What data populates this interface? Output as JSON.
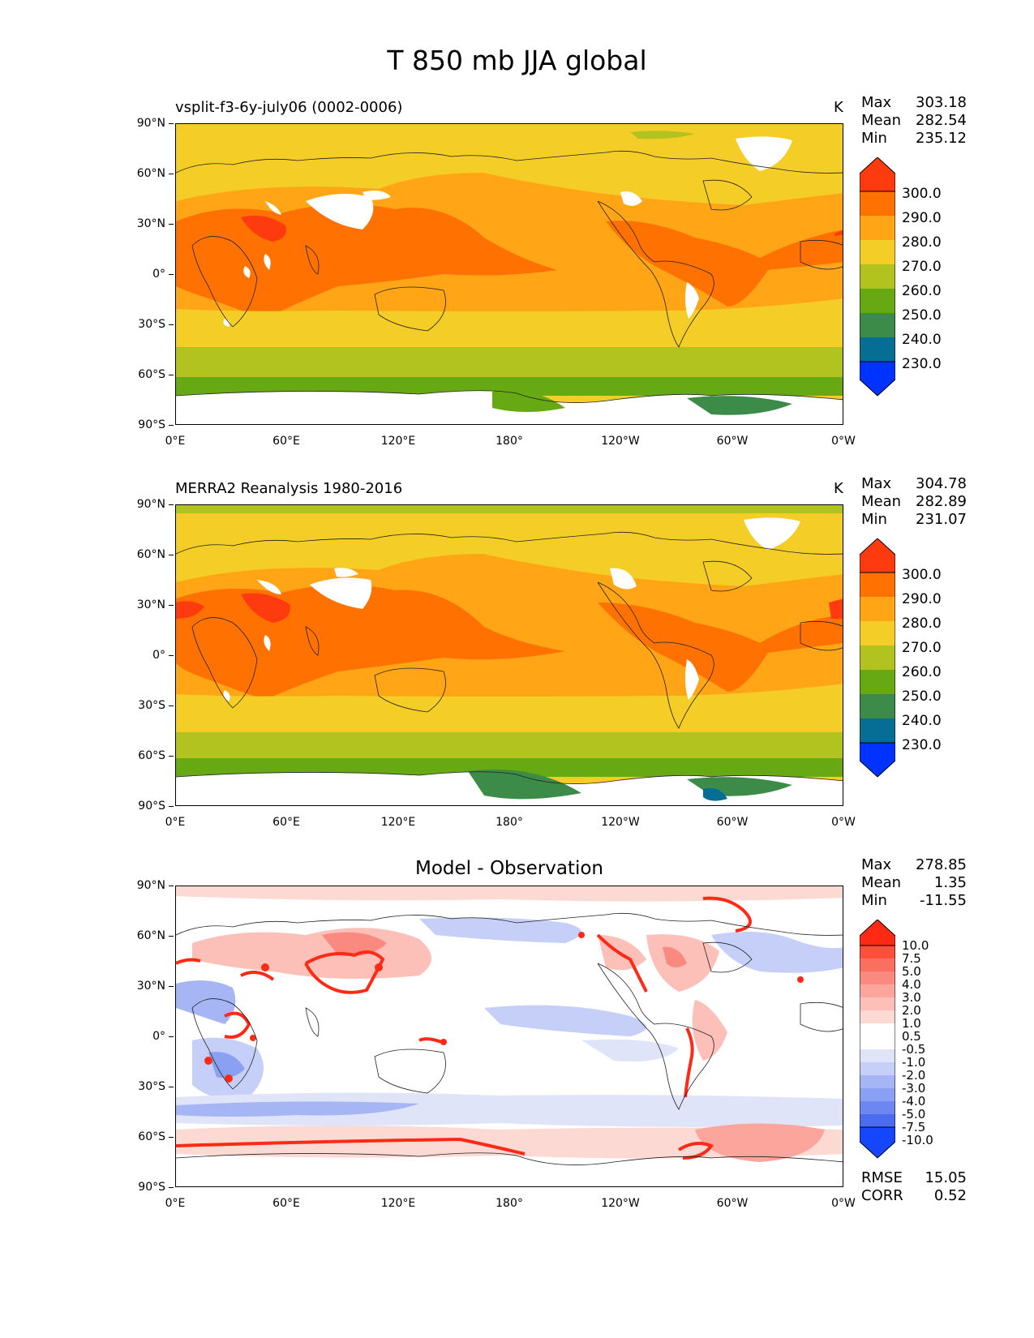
{
  "figure": {
    "title": "T 850 mb JJA global"
  },
  "axes": {
    "lat_labels": [
      "90°N",
      "60°N",
      "30°N",
      "0°",
      "30°S",
      "60°S",
      "90°S"
    ],
    "lon_labels": [
      "0°E",
      "60°E",
      "120°E",
      "180°",
      "120°W",
      "60°W",
      "0°W"
    ]
  },
  "panels": [
    {
      "title": "vsplit-f3-6y-july06 (0002-0006)",
      "units": "K",
      "stats": {
        "max_label": "Max",
        "max": "303.18",
        "mean_label": "Mean",
        "mean": "282.54",
        "min_label": "Min",
        "min": "235.12"
      },
      "levels": [
        "300.0",
        "290.0",
        "280.0",
        "270.0",
        "260.0",
        "250.0",
        "240.0",
        "230.0"
      ]
    },
    {
      "title": "MERRA2 Reanalysis 1980-2016",
      "units": "K",
      "stats": {
        "max_label": "Max",
        "max": "304.78",
        "mean_label": "Mean",
        "mean": "282.89",
        "min_label": "Min",
        "min": "231.07"
      },
      "levels": [
        "300.0",
        "290.0",
        "280.0",
        "270.0",
        "260.0",
        "250.0",
        "240.0",
        "230.0"
      ]
    },
    {
      "title": "Model - Observation",
      "units": "",
      "stats": {
        "max_label": "Max",
        "max": "278.85",
        "mean_label": "Mean",
        "mean": "1.35",
        "min_label": "Min",
        "min": "-11.55"
      },
      "levels": [
        "10.0",
        "7.5",
        "5.0",
        "4.0",
        "3.0",
        "2.0",
        "1.0",
        "0.5",
        "-0.5",
        "-1.0",
        "-2.0",
        "-3.0",
        "-4.0",
        "-5.0",
        "-7.5",
        "-10.0"
      ],
      "scores": {
        "rmse_label": "RMSE",
        "rmse": "15.05",
        "corr_label": "CORR",
        "corr": "0.52"
      }
    }
  ],
  "colors": {
    "abs_scale": [
      "#fe3b0e",
      "#ff7202",
      "#ffa516",
      "#f4cd26",
      "#b2c21f",
      "#66a913",
      "#3d8b48",
      "#066d95",
      "#0033ff"
    ],
    "diff_scale": [
      "#ff2a15",
      "#fe4f3b",
      "#fb6f5f",
      "#fa8a80",
      "#fba59c",
      "#fcc0b9",
      "#fdd9d4",
      "#ffffff",
      "#ffffff",
      "#dfe4f9",
      "#c5cff7",
      "#a6b5f4",
      "#8aa0f2",
      "#6c88f0",
      "#4c6cf0",
      "#1447fe"
    ]
  }
}
